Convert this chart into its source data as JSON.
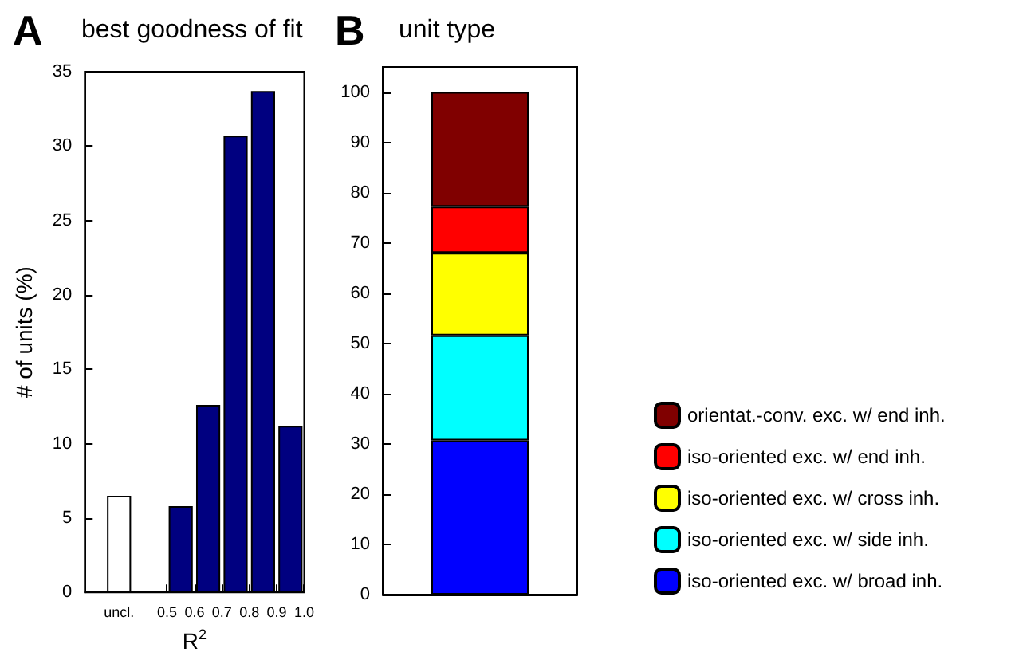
{
  "chart_data": [
    {
      "type": "bar",
      "title": "best goodness of fit",
      "xlabel": "R$^{2}$",
      "ylabel": "# of units (%)",
      "annotations": [
        "A"
      ],
      "xlim": [
        0.2,
        1.0
      ],
      "xticks": [
        {
          "value": 0.325,
          "label": "uncl."
        },
        0.5,
        0.6,
        0.7,
        0.8,
        0.9,
        {
          "value": 1.0,
          "label": "1.0"
        }
      ],
      "ylim": [
        0,
        35
      ],
      "yticks": [
        0,
        5,
        10,
        15,
        20,
        25,
        30,
        35
      ],
      "grid": false,
      "legend": false,
      "series": [
        {
          "color": "#ffffff",
          "x": [
            0.325
          ],
          "values": [
            6.5
          ]
        },
        {
          "color": "#000080",
          "x": [
            0.55,
            0.65,
            0.75,
            0.85,
            0.95
          ],
          "values": [
            5.8,
            12.6,
            30.7,
            33.7,
            11.2
          ]
        }
      ]
    },
    {
      "type": "bar",
      "title": "unit type",
      "annotations": [
        "B"
      ],
      "stacked": true,
      "categories": [
        null
      ],
      "ylim": [
        0,
        105
      ],
      "yticks": [
        0,
        10,
        20,
        30,
        40,
        50,
        60,
        70,
        80,
        90,
        100
      ],
      "grid": false,
      "legend": "right",
      "series": [
        {
          "name": "iso-oriented exc. w/ broad inh.",
          "color": "#0000ff",
          "values": [
            30.7
          ]
        },
        {
          "name": "iso-oriented exc. w/ side inh.",
          "color": "#00ffff",
          "values": [
            20.9
          ]
        },
        {
          "name": "iso-oriented exc. w/ cross inh.",
          "color": "#ffff00",
          "values": [
            16.4
          ]
        },
        {
          "name": "iso-oriented exc. w/ end inh.",
          "color": "#ff0000",
          "values": [
            9.2
          ]
        },
        {
          "name": "orientat.-conv. exc. w/ end inh.",
          "color": "#800000",
          "values": [
            22.8
          ]
        }
      ]
    }
  ]
}
